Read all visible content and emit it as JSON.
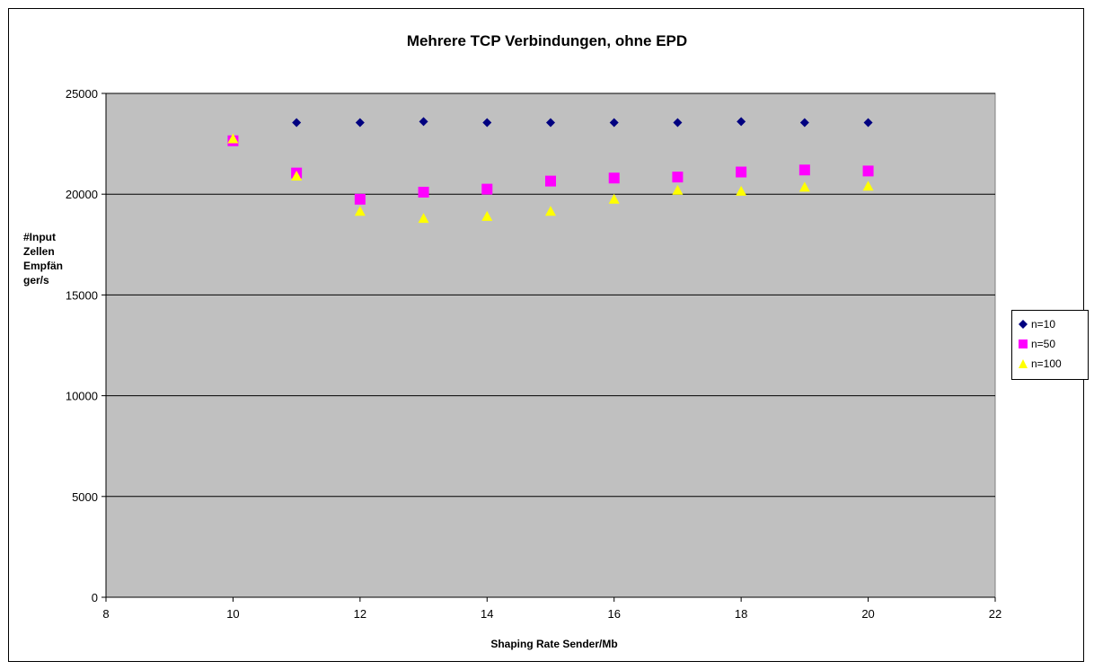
{
  "chart_data": {
    "type": "scatter",
    "title": "Mehrere TCP Verbindungen, ohne EPD",
    "xlabel": "Shaping Rate Sender/Mb",
    "ylabel": "#Input Zellen Empfänger/s",
    "xlim": [
      8,
      22
    ],
    "ylim": [
      0,
      25000
    ],
    "xticks": [
      "8",
      "10",
      "12",
      "14",
      "16",
      "18",
      "20",
      "22"
    ],
    "yticks": [
      "0",
      "5000",
      "10000",
      "15000",
      "20000",
      "25000"
    ],
    "grid": "horizontal",
    "legend_position": "right",
    "plot_background": "#c0c0c0",
    "series": [
      {
        "name": "n=10",
        "marker": "diamond",
        "color": "#000080",
        "x": [
          11,
          12,
          13,
          14,
          15,
          16,
          17,
          18,
          19,
          20
        ],
        "y": [
          23550,
          23550,
          23600,
          23550,
          23550,
          23550,
          23550,
          23600,
          23550,
          23550
        ]
      },
      {
        "name": "n=50",
        "marker": "square",
        "color": "#ff00ff",
        "x": [
          10,
          11,
          12,
          13,
          14,
          15,
          16,
          17,
          18,
          19,
          20
        ],
        "y": [
          22650,
          21050,
          19750,
          20100,
          20250,
          20650,
          20800,
          20850,
          21100,
          21200,
          21150
        ]
      },
      {
        "name": "n=100",
        "marker": "triangle",
        "color": "#ffff00",
        "x": [
          10,
          11,
          12,
          13,
          14,
          15,
          16,
          17,
          18,
          19,
          20
        ],
        "y": [
          22750,
          20900,
          19150,
          18800,
          18900,
          19150,
          19750,
          20200,
          20150,
          20350,
          20400
        ]
      }
    ]
  }
}
